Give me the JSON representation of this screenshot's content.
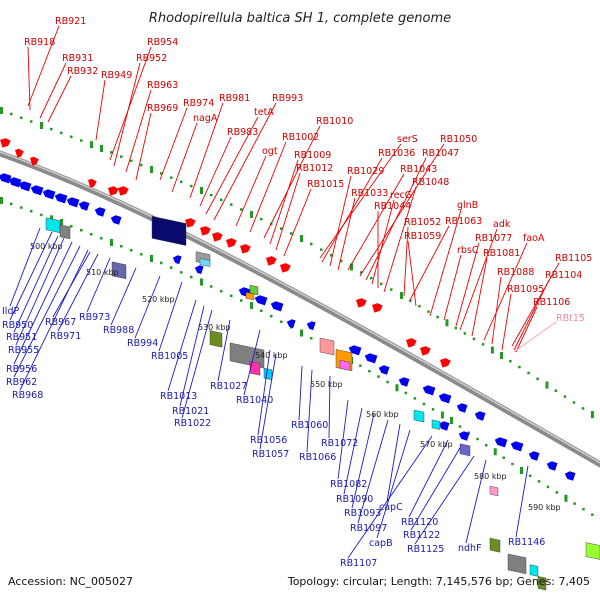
{
  "title": "Rhodopirellula baltica SH 1, complete genome",
  "footer": {
    "accession": "Accession: NC_005027",
    "info": "Topology: circular; Length: 7,145,576 bp; Genes: 7,405"
  },
  "colors": {
    "forward": "#ff0000",
    "reverse": "#0000ee",
    "rna": "#ff99cc",
    "axis": "#8a8a8a",
    "tick": "#229922"
  },
  "kbp_ticks": [
    "500 kbp",
    "510 kbp",
    "520 kbp",
    "530 kbp",
    "540 kbp",
    "550 kbp",
    "560 kbp",
    "570 kbp",
    "580 kbp",
    "590 kbp"
  ],
  "forward_labels": [
    "RB921",
    "RB918",
    "RB931",
    "RB932",
    "RB949",
    "RB954",
    "RB952",
    "RB963",
    "RB969",
    "RB974",
    "nagA",
    "RB981",
    "RB983",
    "tetA",
    "RB993",
    "ogt",
    "RB1002",
    "RB1010",
    "RB1009",
    "RB1012",
    "RB1015",
    "serS",
    "RB1036",
    "RB1029",
    "RB1033",
    "RB1043",
    "RB1050",
    "RB1047",
    "recG",
    "RB1044",
    "RB1048",
    "RB1052",
    "RB1063",
    "RB1059",
    "glnB",
    "rbsC",
    "RB1077",
    "adk",
    "RB1081",
    "faoA",
    "RB1088",
    "RB1095",
    "RB1105",
    "RB1104",
    "RB1106"
  ],
  "rna_labels": [
    "RBt15"
  ],
  "reverse_labels": [
    "IldP",
    "RB950",
    "RB951",
    "RB955",
    "RB956",
    "RB962",
    "RB968",
    "RB967",
    "RB971",
    "RB973",
    "RB988",
    "RB994",
    "RB1005",
    "RB1013",
    "RB1021",
    "RB1022",
    "RB1027",
    "RB1040",
    "RB1056",
    "RB1057",
    "RB1060",
    "RB1066",
    "RB1072",
    "RB1082",
    "RB1090",
    "RB1093",
    "RB1097",
    "capC",
    "capB",
    "RB1107",
    "RB1120",
    "RB1122",
    "RB1125",
    "ndhF",
    "RB1146"
  ]
}
